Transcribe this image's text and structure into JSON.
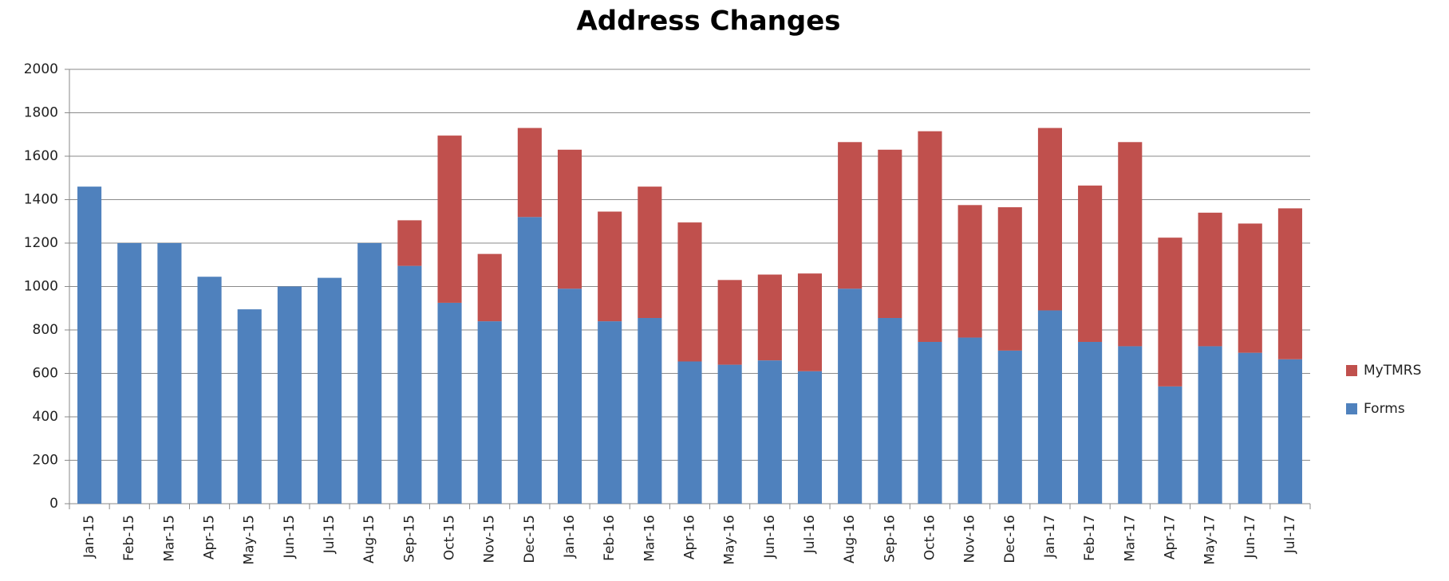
{
  "chart_data": {
    "type": "stacked-bar",
    "title": "Address Changes",
    "categories": [
      "Jan-15",
      "Feb-15",
      "Mar-15",
      "Apr-15",
      "May-15",
      "Jun-15",
      "Jul-15",
      "Aug-15",
      "Sep-15",
      "Oct-15",
      "Nov-15",
      "Dec-15",
      "Jan-16",
      "Feb-16",
      "Mar-16",
      "Apr-16",
      "May-16",
      "Jun-16",
      "Jul-16",
      "Aug-16",
      "Sep-16",
      "Oct-16",
      "Nov-16",
      "Dec-16",
      "Jan-17",
      "Feb-17",
      "Mar-17",
      "Apr-17",
      "May-17",
      "Jun-17",
      "Jul-17"
    ],
    "series": [
      {
        "name": "Forms",
        "color": "#4f81bd",
        "values": [
          1460,
          1200,
          1200,
          1045,
          895,
          1000,
          1040,
          1200,
          1095,
          925,
          840,
          1320,
          990,
          840,
          855,
          655,
          640,
          660,
          610,
          990,
          855,
          745,
          765,
          705,
          890,
          745,
          725,
          540,
          725,
          695,
          665
        ]
      },
      {
        "name": "MyTMRS",
        "color": "#c0504d",
        "values": [
          null,
          null,
          null,
          null,
          null,
          null,
          null,
          null,
          210,
          770,
          310,
          410,
          640,
          505,
          605,
          640,
          390,
          395,
          450,
          675,
          775,
          970,
          610,
          660,
          840,
          720,
          940,
          685,
          615,
          595,
          695
        ]
      }
    ],
    "ylim": [
      0,
      2000
    ],
    "yticks": [
      0,
      200,
      400,
      600,
      800,
      1000,
      1200,
      1400,
      1600,
      1800,
      2000
    ],
    "grid": true,
    "legend": "right"
  }
}
